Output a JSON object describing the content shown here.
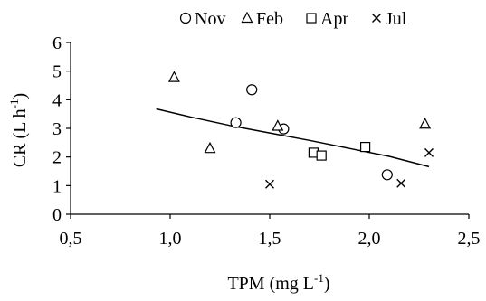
{
  "chart_data": {
    "type": "scatter",
    "title": "",
    "xlabel": {
      "base": "TPM (mg L",
      "sup": "-1",
      "tail": ")"
    },
    "ylabel": {
      "base": "CR (L h",
      "sup": "-1",
      "tail": ")"
    },
    "xlim": [
      0.5,
      2.5
    ],
    "ylim": [
      0,
      6
    ],
    "x_ticks": [
      0.5,
      1.0,
      1.5,
      2.0,
      2.5
    ],
    "x_tick_labels": [
      "0,5",
      "1,0",
      "1,5",
      "2,0",
      "2,5"
    ],
    "y_ticks": [
      0,
      1,
      2,
      3,
      4,
      5,
      6
    ],
    "y_tick_labels": [
      "0",
      "1",
      "2",
      "3",
      "4",
      "5",
      "6"
    ],
    "grid": false,
    "legend_position": "top",
    "series": [
      {
        "name": "Nov",
        "marker": "circle",
        "points": [
          [
            1.33,
            3.2
          ],
          [
            1.41,
            4.35
          ],
          [
            1.57,
            2.98
          ],
          [
            2.09,
            1.38
          ]
        ]
      },
      {
        "name": "Feb",
        "marker": "triangle",
        "points": [
          [
            1.02,
            4.78
          ],
          [
            1.2,
            2.3
          ],
          [
            1.54,
            3.08
          ],
          [
            2.28,
            3.15
          ]
        ]
      },
      {
        "name": "Apr",
        "marker": "square",
        "points": [
          [
            1.72,
            2.15
          ],
          [
            1.76,
            2.05
          ],
          [
            1.98,
            2.35
          ]
        ]
      },
      {
        "name": "Jul",
        "marker": "x",
        "points": [
          [
            1.5,
            1.05
          ],
          [
            2.16,
            1.08
          ],
          [
            2.3,
            2.15
          ]
        ]
      }
    ],
    "trendline": {
      "type": "power",
      "points": [
        [
          0.93,
          3.68
        ],
        [
          1.1,
          3.4
        ],
        [
          1.3,
          3.1
        ],
        [
          1.5,
          2.84
        ],
        [
          1.7,
          2.58
        ],
        [
          1.9,
          2.3
        ],
        [
          2.1,
          2.02
        ],
        [
          2.3,
          1.66
        ]
      ]
    }
  }
}
